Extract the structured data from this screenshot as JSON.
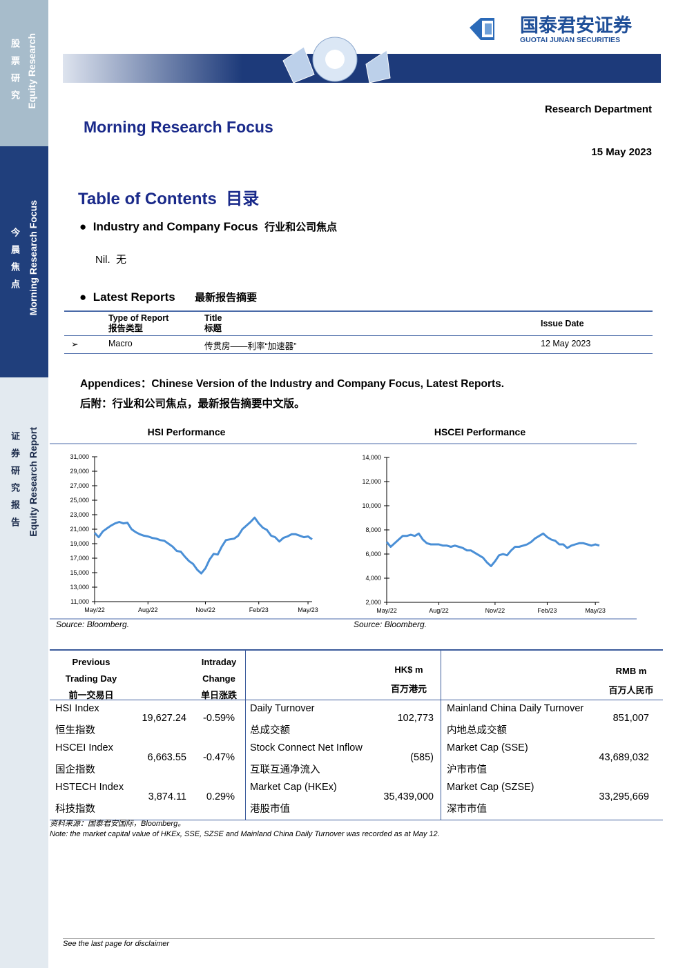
{
  "sidebar": {
    "top": {
      "cn": "股票研究",
      "en": "Equity Research"
    },
    "middle": {
      "cn": "今晨焦点",
      "en": "Morning Research Focus"
    },
    "bottom": {
      "cn": "证券研究报告",
      "en": "Equity Research Report"
    }
  },
  "header": {
    "logo_cn": "国泰君安证券",
    "logo_en": "GUOTAI JUNAN SECURITIES",
    "department": "Research Department",
    "title": "Morning Research Focus",
    "date": "15 May 2023"
  },
  "toc": {
    "title": "Table of Contents",
    "title_cn": "目录",
    "sections": [
      {
        "title": "Industry and Company Focus",
        "title_cn": "行业和公司焦点",
        "body": "Nil.  无"
      },
      {
        "title": "Latest Reports",
        "title_cn": "最新报告摘要"
      }
    ]
  },
  "reports_table": {
    "headers": [
      {
        "en": "Type of Report",
        "cn": "报告类型"
      },
      {
        "en": "Title",
        "cn": "标题"
      },
      {
        "en": "Issue Date"
      }
    ],
    "rows": [
      [
        "Macro",
        "传贯房——利率“加速器”",
        "12 May 2023"
      ]
    ]
  },
  "appendix": {
    "en": "Appendices：Chinese Version of the Industry and Company Focus, Latest Reports.",
    "cn": "后附：行业和公司焦点，最新报告摘要中文版。"
  },
  "chart_data": [
    {
      "type": "line",
      "title": "HSI Performance",
      "source": "Source: Bloomberg.",
      "color": "#4a8fd6",
      "categories": [
        "May/22",
        null,
        null,
        null,
        null,
        null,
        null,
        null,
        null,
        null,
        null,
        null,
        null,
        "Aug/22",
        null,
        null,
        null,
        null,
        null,
        null,
        null,
        null,
        null,
        null,
        null,
        null,
        null,
        "Nov/22",
        null,
        null,
        null,
        null,
        null,
        null,
        null,
        null,
        null,
        null,
        null,
        null,
        "Feb/23",
        null,
        null,
        null,
        null,
        null,
        null,
        null,
        null,
        null,
        null,
        null,
        "May/23",
        null
      ],
      "values": [
        20500,
        19900,
        20700,
        21100,
        21500,
        21800,
        22000,
        21800,
        21900,
        21000,
        20600,
        20300,
        20100,
        20000,
        19800,
        19700,
        19500,
        19400,
        19000,
        18600,
        18000,
        17900,
        17200,
        16600,
        16200,
        15400,
        14900,
        15600,
        16800,
        17600,
        17500,
        18600,
        19500,
        19600,
        19700,
        20100,
        21000,
        21500,
        22000,
        22600,
        21800,
        21200,
        20900,
        20100,
        19900,
        19300,
        19800,
        20000,
        20300,
        20300,
        20100,
        19900,
        20000,
        19600
      ],
      "ylim": [
        11000,
        31000
      ],
      "yticks": [
        {
          "value": 11000,
          "label": "11,000"
        },
        {
          "value": 13000,
          "label": "13,000"
        },
        {
          "value": 15000,
          "label": "15,000"
        },
        {
          "value": 17000,
          "label": "17,000"
        },
        {
          "value": 19000,
          "label": "19,000"
        },
        {
          "value": 21000,
          "label": "21,000"
        },
        {
          "value": 23000,
          "label": "23,000"
        },
        {
          "value": 25000,
          "label": "25,000"
        },
        {
          "value": 27000,
          "label": "27,000"
        },
        {
          "value": 29000,
          "label": "29,000"
        },
        {
          "value": 31000,
          "label": "31,000"
        }
      ]
    },
    {
      "type": "line",
      "title": "HSCEI Performance",
      "source": "Source: Bloomberg.",
      "color": "#4a8fd6",
      "categories": [
        "May/22",
        null,
        null,
        null,
        null,
        null,
        null,
        null,
        null,
        null,
        null,
        null,
        null,
        "Aug/22",
        null,
        null,
        null,
        null,
        null,
        null,
        null,
        null,
        null,
        null,
        null,
        null,
        null,
        "Nov/22",
        null,
        null,
        null,
        null,
        null,
        null,
        null,
        null,
        null,
        null,
        null,
        null,
        "Feb/23",
        null,
        null,
        null,
        null,
        null,
        null,
        null,
        null,
        null,
        null,
        null,
        "May/23",
        null
      ],
      "values": [
        7000,
        6600,
        6900,
        7200,
        7500,
        7500,
        7600,
        7500,
        7700,
        7200,
        6900,
        6800,
        6800,
        6800,
        6700,
        6700,
        6600,
        6700,
        6600,
        6500,
        6300,
        6300,
        6100,
        5900,
        5700,
        5300,
        5000,
        5400,
        5900,
        6000,
        5900,
        6300,
        6600,
        6600,
        6700,
        6800,
        7000,
        7300,
        7500,
        7700,
        7400,
        7200,
        7100,
        6800,
        6800,
        6500,
        6700,
        6800,
        6900,
        6900,
        6800,
        6700,
        6800,
        6700
      ],
      "ylim": [
        2000,
        14000
      ],
      "yticks": [
        {
          "value": 2000,
          "label": "2,000"
        },
        {
          "value": 4000,
          "label": "4,000"
        },
        {
          "value": 6000,
          "label": "6,000"
        },
        {
          "value": 8000,
          "label": "8,000"
        },
        {
          "value": 10000,
          "label": "10,000"
        },
        {
          "value": 12000,
          "label": "12,000"
        },
        {
          "value": 14000,
          "label": "14,000"
        }
      ]
    }
  ],
  "market_table": {
    "headers": {
      "close": [
        "Previous",
        "Trading Day",
        "前一交易日"
      ],
      "change": [
        "Intraday",
        "Change",
        "单日涨跌"
      ],
      "hk": [
        "HK$ m",
        "百万港元"
      ],
      "rmb": [
        "RMB m",
        "百万人民币"
      ]
    },
    "rows": [
      {
        "index": "HSI Index",
        "index_cn": "恒生指数",
        "close": "19,627.24",
        "change": "-0.59%",
        "hk_item": "Daily Turnover",
        "hk_item_cn": "总成交额",
        "hk_value": "102,773",
        "rmb_item": "Mainland China Daily Turnover",
        "rmb_item_cn": "内地总成交额",
        "rmb_value": "851,007"
      },
      {
        "index": "HSCEI Index",
        "index_cn": "国企指数",
        "close": "6,663.55",
        "change": "-0.47%",
        "hk_item": "Stock Connect Net Inflow",
        "hk_item_cn": "互联互通净流入",
        "hk_value": "(585)",
        "rmb_item": "Market Cap (SSE)",
        "rmb_item_cn": "沪市市值",
        "rmb_value": "43,689,032"
      },
      {
        "index": "HSTECH Index",
        "index_cn": "科技指数",
        "close": "3,874.11",
        "change": "0.29%",
        "hk_item": "Market Cap (HKEx)",
        "hk_item_cn": "港股市值",
        "hk_value": "35,439,000",
        "rmb_item": "Market Cap (SZSE)",
        "rmb_item_cn": "深市市值",
        "rmb_value": "33,295,669"
      }
    ],
    "source": "资料来源：国泰君安国际，Bloomberg。",
    "note": "Note: the market capital value of HKEx, SSE, SZSE and Mainland China Daily Turnover was recorded as at May 12."
  },
  "footer": {
    "disclaimer": "See the last page for disclaimer"
  }
}
